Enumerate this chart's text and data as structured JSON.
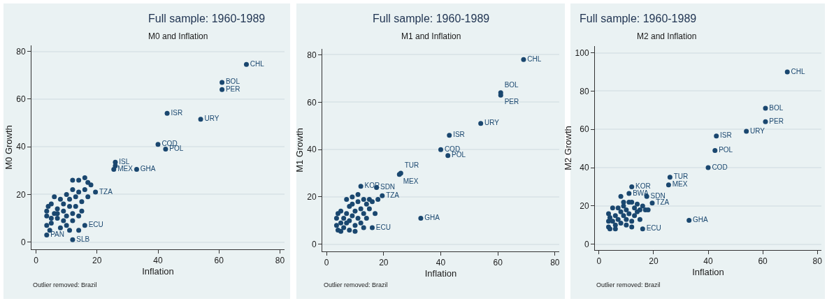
{
  "chart_data": [
    {
      "type": "scatter",
      "title": "Full sample: 1960-1989",
      "subtitle": "M0 and Inflation",
      "xlabel": "Inflation",
      "ylabel": "M0 Growth",
      "annotations": [
        "Outlier removed: Brazil"
      ],
      "color": "#1a476f",
      "marker": "circle",
      "grid": "y",
      "xlim": [
        -1.5,
        81.5
      ],
      "ylim": [
        -3,
        82.5
      ],
      "xticks": [
        0,
        20,
        40,
        60,
        80
      ],
      "yticks": [
        0,
        20,
        40,
        60,
        80
      ],
      "x": [
        69,
        61,
        61,
        43,
        54,
        40,
        42.5,
        26,
        25.5,
        33,
        19.5,
        16,
        12,
        3.5,
        3.5,
        3.5,
        4,
        5,
        3.5,
        4.5,
        5,
        6,
        6,
        7,
        7,
        8,
        8,
        9,
        9,
        9,
        10,
        10,
        10,
        11,
        11,
        11,
        12,
        12,
        12,
        12,
        13,
        13,
        14,
        14,
        14,
        15,
        15,
        16,
        16,
        17,
        17,
        18,
        14,
        5,
        7,
        26
      ],
      "values": [
        74.5,
        67,
        64,
        54,
        51.5,
        41,
        39,
        33.5,
        30.5,
        30.5,
        21,
        7,
        1,
        3,
        13,
        11,
        15,
        16,
        7,
        5,
        8,
        19,
        12,
        10,
        14,
        18,
        6,
        9,
        13,
        16,
        20,
        11,
        7,
        15,
        18,
        5,
        26,
        22,
        12,
        9,
        19,
        15,
        26,
        21,
        11,
        17,
        13,
        27,
        22,
        25,
        19,
        24,
        5,
        10,
        12,
        32
      ],
      "value_labels": [
        "CHL",
        "BOL",
        "PER",
        "ISR",
        "URY",
        "COD",
        "POL",
        "ISL",
        "MEX",
        "GHA",
        "TZA",
        "ECU",
        "SLB",
        "PAN",
        null,
        null,
        null,
        null,
        null,
        null,
        null,
        null,
        null,
        null,
        null,
        null,
        null,
        null,
        null,
        null,
        null,
        null,
        null,
        null,
        null,
        null,
        null,
        null,
        null,
        null,
        null,
        null,
        null,
        null,
        null,
        null,
        null,
        null,
        null,
        null,
        null,
        null,
        null,
        null,
        null,
        null
      ]
    },
    {
      "type": "scatter",
      "title": "Full sample: 1960-1989",
      "subtitle": "M1 and Inflation",
      "xlabel": "Inflation",
      "ylabel": "M1 Growth",
      "annotations": [
        "Outlier removed: Brazil"
      ],
      "color": "#1a476f",
      "marker": "circle",
      "grid": "y",
      "xlim": [
        -1.5,
        81.5
      ],
      "ylim": [
        -3,
        82.5
      ],
      "xticks": [
        0,
        20,
        40,
        60,
        80
      ],
      "yticks": [
        0,
        20,
        40,
        60,
        80
      ],
      "x": [
        69,
        61,
        61,
        54,
        43,
        40,
        42.5,
        26,
        25.5,
        33,
        12,
        17.5,
        19.5,
        16,
        3.5,
        3.5,
        4,
        4,
        5,
        5,
        6,
        6,
        7,
        7,
        8,
        8,
        8,
        9,
        9,
        10,
        10,
        11,
        11,
        11,
        12,
        12,
        13,
        13,
        14,
        14,
        15,
        15,
        16,
        17,
        18,
        5,
        10,
        13,
        7,
        9
      ],
      "values": [
        78,
        64,
        63,
        51,
        46,
        40,
        37.5,
        30,
        29.5,
        11,
        24.5,
        24,
        20.5,
        7,
        11,
        8,
        13,
        6,
        14,
        9,
        11,
        7,
        19,
        13,
        10,
        16,
        6,
        12,
        17,
        14,
        8,
        21,
        18,
        11,
        15,
        9,
        19,
        13,
        17,
        11,
        19,
        15,
        18,
        13,
        19,
        5.5,
        5.5,
        7,
        9,
        20
      ],
      "value_labels": [
        "CHL",
        "BOL",
        "PER",
        "URY",
        "ISR",
        "COD",
        "POL",
        "TUR",
        "MEX",
        "GHA",
        "KOR",
        "SDN",
        "TZA",
        "ECU",
        null,
        null,
        null,
        null,
        null,
        null,
        null,
        null,
        null,
        null,
        null,
        null,
        null,
        null,
        null,
        null,
        null,
        null,
        null,
        null,
        null,
        null,
        null,
        null,
        null,
        null,
        null,
        null,
        null,
        null,
        null,
        null,
        null,
        null,
        null,
        null
      ]
    },
    {
      "type": "scatter",
      "title": "Full sample: 1960-1989",
      "subtitle": "M2 and Inflation",
      "xlabel": "Inflation",
      "ylabel": "M2 Growth",
      "annotations": [
        "Outlier removed: Brazil"
      ],
      "color": "#1a476f",
      "marker": "circle",
      "grid": "y",
      "xlim": [
        -1.5,
        81.5
      ],
      "ylim": [
        -3,
        103.5
      ],
      "xticks": [
        0,
        20,
        40,
        60,
        80
      ],
      "yticks": [
        0,
        20,
        40,
        60,
        80,
        100
      ],
      "x": [
        69,
        61,
        61,
        54,
        43,
        42.5,
        40,
        26,
        25.5,
        33,
        12,
        11,
        16,
        19.5,
        17.5,
        3.5,
        3.5,
        3.5,
        4,
        4,
        5,
        5,
        6,
        6,
        7,
        7,
        8,
        8,
        8,
        9,
        9,
        10,
        10,
        11,
        11,
        12,
        12,
        13,
        13,
        14,
        14,
        15,
        15,
        16,
        17,
        18,
        6,
        10,
        12,
        9
      ],
      "values": [
        90,
        71,
        64,
        59,
        56.5,
        49,
        40,
        35,
        31,
        12.5,
        30,
        26.5,
        8,
        21.5,
        25,
        16,
        12,
        9,
        14,
        8,
        19,
        12,
        15,
        10,
        19,
        13,
        25,
        17,
        11,
        15,
        20,
        13,
        18,
        22,
        16,
        22,
        12,
        19,
        15,
        21,
        17,
        18,
        13,
        20,
        18,
        18,
        8,
        10,
        9,
        22
      ],
      "value_labels": [
        "CHL",
        "BOL",
        "PER",
        "URY",
        "ISR",
        "POL",
        "COD",
        "TUR",
        "MEX",
        "GHA",
        "KOR",
        "BWA",
        "ECU",
        "TZA",
        "SDN",
        null,
        null,
        null,
        null,
        null,
        null,
        null,
        null,
        null,
        null,
        null,
        null,
        null,
        null,
        null,
        null,
        null,
        null,
        null,
        null,
        null,
        null,
        null,
        null,
        null,
        null,
        null,
        null,
        null,
        null,
        null,
        null,
        null,
        null,
        null
      ]
    }
  ]
}
